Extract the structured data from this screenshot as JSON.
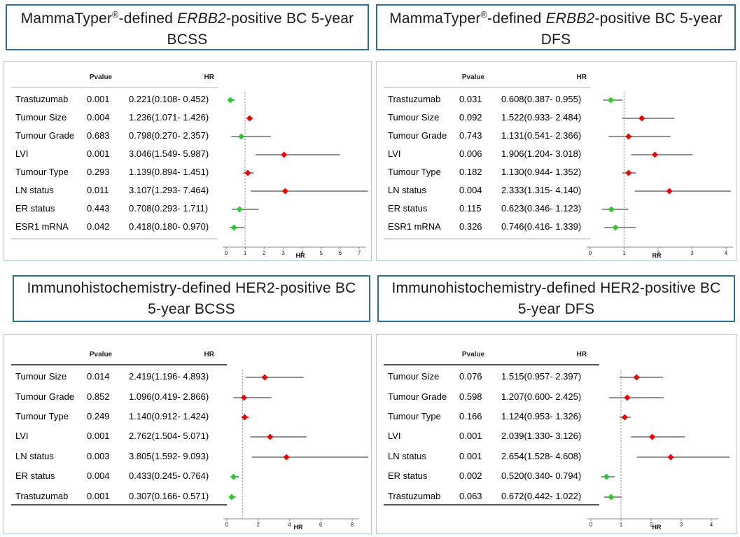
{
  "colors": {
    "red_diamond": "#f20000",
    "green_diamond": "#2cc92c",
    "ci_line": "#808080",
    "ref_line": "#9a9a9a",
    "axis_line": "#888888",
    "title_border": "#2e6e8e",
    "panel_border": "#a9c9db"
  },
  "chart_data": [
    {
      "type": "forest",
      "title": "MammaTyper®-defined ERBB2-positive BC 5-year BCSS",
      "title_segments": [
        {
          "text": "MammaTyper",
          "style": "normal"
        },
        {
          "text": "®",
          "style": "sup"
        },
        {
          "text": "-defined ",
          "style": "normal"
        },
        {
          "text": "ERBB2",
          "style": "italic"
        },
        {
          "text": "-positive BC 5-year BCSS",
          "style": "normal"
        }
      ],
      "columns": {
        "pvalue": "Pvalue",
        "hr": "HR"
      },
      "axis": {
        "min": 0,
        "max": 7,
        "ticks": [
          0,
          1,
          2,
          3,
          4,
          5,
          6,
          7
        ],
        "label": "HR",
        "ref_line": 1
      },
      "rows": [
        {
          "label": "Trastuzumab",
          "p": "0.001",
          "hr_text": "0.221(0.108- 0.452)",
          "hr": 0.221,
          "lo": 0.108,
          "hi": 0.452,
          "color": "green"
        },
        {
          "label": "Tumour Size",
          "p": "0.004",
          "hr_text": "1.236(1.071- 1.426)",
          "hr": 1.236,
          "lo": 1.071,
          "hi": 1.426,
          "color": "red"
        },
        {
          "label": "Tumour Grade",
          "p": "0.683",
          "hr_text": "0.798(0.270- 2.357)",
          "hr": 0.798,
          "lo": 0.27,
          "hi": 2.357,
          "color": "green"
        },
        {
          "label": "LVI",
          "p": "0.001",
          "hr_text": "3.046(1.549- 5.987)",
          "hr": 3.046,
          "lo": 1.549,
          "hi": 5.987,
          "color": "red"
        },
        {
          "label": "Tumour Type",
          "p": "0.293",
          "hr_text": "1.139(0.894- 1.451)",
          "hr": 1.139,
          "lo": 0.894,
          "hi": 1.451,
          "color": "red"
        },
        {
          "label": "LN status",
          "p": "0.011",
          "hr_text": "3.107(1.293- 7.464)",
          "hr": 3.107,
          "lo": 1.293,
          "hi": 7.464,
          "color": "red"
        },
        {
          "label": "ER status",
          "p": "0.443",
          "hr_text": "0.708(0.293- 1.711)",
          "hr": 0.708,
          "lo": 0.293,
          "hi": 1.711,
          "color": "green"
        },
        {
          "label": "ESR1 mRNA",
          "p": "0.042",
          "hr_text": "0.418(0.180- 0.970)",
          "hr": 0.418,
          "lo": 0.18,
          "hi": 0.97,
          "color": "green"
        }
      ]
    },
    {
      "type": "forest",
      "title": "MammaTyper®-defined ERBB2-positive BC 5-year DFS",
      "title_segments": [
        {
          "text": "MammaTyper",
          "style": "normal"
        },
        {
          "text": "®",
          "style": "sup"
        },
        {
          "text": "-defined ",
          "style": "normal"
        },
        {
          "text": "ERBB2",
          "style": "italic"
        },
        {
          "text": "-positive BC 5-year DFS",
          "style": "normal"
        }
      ],
      "columns": {
        "pvalue": "Pvalue",
        "hr": "HR"
      },
      "axis": {
        "min": 0,
        "max": 4,
        "ticks": [
          0,
          1,
          2,
          3,
          4
        ],
        "label": "RR",
        "ref_line": 1
      },
      "rows": [
        {
          "label": "Trastuzumab",
          "p": "0.031",
          "hr_text": "0.608(0.387- 0.955)",
          "hr": 0.608,
          "lo": 0.387,
          "hi": 0.955,
          "color": "green"
        },
        {
          "label": "Tumour Size",
          "p": "0.092",
          "hr_text": "1.522(0.933- 2.484)",
          "hr": 1.522,
          "lo": 0.933,
          "hi": 2.484,
          "color": "red"
        },
        {
          "label": "Tumour Grade",
          "p": "0.743",
          "hr_text": "1.131(0.541- 2.366)",
          "hr": 1.131,
          "lo": 0.541,
          "hi": 2.366,
          "color": "red"
        },
        {
          "label": "LVI",
          "p": "0.006",
          "hr_text": "1.906(1.204- 3.018)",
          "hr": 1.906,
          "lo": 1.204,
          "hi": 3.018,
          "color": "red"
        },
        {
          "label": "Tumour Type",
          "p": "0.182",
          "hr_text": "1.130(0.944- 1.352)",
          "hr": 1.13,
          "lo": 0.944,
          "hi": 1.352,
          "color": "red"
        },
        {
          "label": "LN status",
          "p": "0.004",
          "hr_text": "2.333(1.315- 4.140)",
          "hr": 2.333,
          "lo": 1.315,
          "hi": 4.14,
          "color": "red"
        },
        {
          "label": "ER status",
          "p": "0.115",
          "hr_text": "0.623(0.346- 1.123)",
          "hr": 0.623,
          "lo": 0.346,
          "hi": 1.123,
          "color": "green"
        },
        {
          "label": "ESR1 mRNA",
          "p": "0.326",
          "hr_text": "0.746(0.416- 1.339)",
          "hr": 0.746,
          "lo": 0.416,
          "hi": 1.339,
          "color": "green"
        }
      ]
    },
    {
      "type": "forest",
      "title": "Immunohistochemistry-defined HER2-positive BC 5-year BCSS",
      "title_segments": [
        {
          "text": "Immunohistochemistry-defined HER2-positive BC 5-year BCSS",
          "style": "normal"
        }
      ],
      "columns": {
        "pvalue": "Pvalue",
        "hr": "HR"
      },
      "axis": {
        "min": 0,
        "max": 8,
        "ticks": [
          0,
          2,
          4,
          6,
          8
        ],
        "label": "HR",
        "ref_line": 1
      },
      "rows": [
        {
          "label": "Tumour Size",
          "p": "0.014",
          "hr_text": "2.419(1.196- 4.893)",
          "hr": 2.419,
          "lo": 1.196,
          "hi": 4.893,
          "color": "red"
        },
        {
          "label": "Tumour Grade",
          "p": "0.852",
          "hr_text": "1.096(0.419- 2.866)",
          "hr": 1.096,
          "lo": 0.419,
          "hi": 2.866,
          "color": "red"
        },
        {
          "label": "Tumour Type",
          "p": "0.249",
          "hr_text": "1.140(0.912- 1.424)",
          "hr": 1.14,
          "lo": 0.912,
          "hi": 1.424,
          "color": "red"
        },
        {
          "label": "LVI",
          "p": "0.001",
          "hr_text": "2.762(1.504- 5.071)",
          "hr": 2.762,
          "lo": 1.504,
          "hi": 5.071,
          "color": "red"
        },
        {
          "label": "LN status",
          "p": "0.003",
          "hr_text": "3.805(1.592- 9.093)",
          "hr": 3.805,
          "lo": 1.592,
          "hi": 9.093,
          "color": "red"
        },
        {
          "label": "ER status",
          "p": "0.004",
          "hr_text": "0.433(0.245- 0.764)",
          "hr": 0.433,
          "lo": 0.245,
          "hi": 0.764,
          "color": "green"
        },
        {
          "label": "Trastuzumab",
          "p": "0.001",
          "hr_text": "0.307(0.166- 0.571)",
          "hr": 0.307,
          "lo": 0.166,
          "hi": 0.571,
          "color": "green"
        }
      ]
    },
    {
      "type": "forest",
      "title": "Immunohistochemistry-defined HER2-positive BC 5-year DFS",
      "title_segments": [
        {
          "text": "Immunohistochemistry-defined HER2-positive BC 5-year DFS",
          "style": "normal"
        }
      ],
      "columns": {
        "pvalue": "Pvalue",
        "hr": "HR"
      },
      "axis": {
        "min": 0,
        "max": 4,
        "ticks": [
          0,
          1,
          2,
          3,
          4
        ],
        "label": "HR",
        "ref_line": 1
      },
      "rows": [
        {
          "label": "Tumour Size",
          "p": "0.076",
          "hr_text": "1.515(0.957- 2.397)",
          "hr": 1.515,
          "lo": 0.957,
          "hi": 2.397,
          "color": "red"
        },
        {
          "label": "Tumour Grade",
          "p": "0.598",
          "hr_text": "1.207(0.600- 2.425)",
          "hr": 1.207,
          "lo": 0.6,
          "hi": 2.425,
          "color": "red"
        },
        {
          "label": "Tumour Type",
          "p": "0.166",
          "hr_text": "1.124(0.953- 1.326)",
          "hr": 1.124,
          "lo": 0.953,
          "hi": 1.326,
          "color": "red"
        },
        {
          "label": "LVI",
          "p": "0.001",
          "hr_text": "2.039(1.330- 3.126)",
          "hr": 2.039,
          "lo": 1.33,
          "hi": 3.126,
          "color": "red"
        },
        {
          "label": "LN status",
          "p": "0.001",
          "hr_text": "2.654(1.528- 4.608)",
          "hr": 2.654,
          "lo": 1.528,
          "hi": 4.608,
          "color": "red"
        },
        {
          "label": "ER status",
          "p": "0.002",
          "hr_text": "0.520(0.340- 0.794)",
          "hr": 0.52,
          "lo": 0.34,
          "hi": 0.794,
          "color": "green"
        },
        {
          "label": "Trastuzumab",
          "p": "0.063",
          "hr_text": "0.672(0.442- 1.022)",
          "hr": 0.672,
          "lo": 0.442,
          "hi": 1.022,
          "color": "green"
        }
      ]
    }
  ]
}
